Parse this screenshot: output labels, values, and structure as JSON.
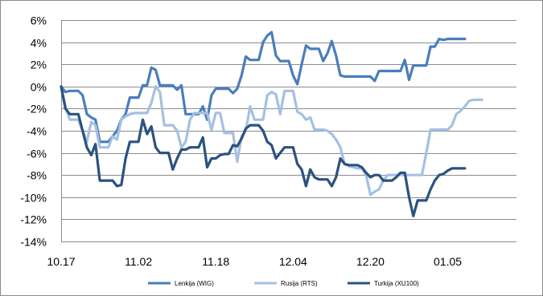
{
  "chart_data": {
    "type": "line",
    "title": "",
    "xlabel": "",
    "ylabel": "",
    "ylim": [
      -14,
      6
    ],
    "yticks": [
      6,
      4,
      2,
      0,
      -2,
      -4,
      -6,
      -8,
      -10,
      -12,
      -14
    ],
    "ytick_labels": [
      "6%",
      "4%",
      "2%",
      "0%",
      "-2%",
      "-4%",
      "-6%",
      "-8%",
      "-10%",
      "-12%",
      "-14%"
    ],
    "xticks": [
      0,
      18,
      36,
      54,
      72,
      90
    ],
    "xtick_labels": [
      "10.17",
      "11.02",
      "11.18",
      "12.04",
      "12.20",
      "01.05"
    ],
    "x_max": 106,
    "grid": "horizontal",
    "legend_position": "bottom",
    "series": [
      {
        "name": "Lenkija (WIG)",
        "color": "#4a7ebb",
        "values": [
          0.0,
          -0.5,
          -0.4,
          -0.4,
          -0.4,
          -0.8,
          -2.5,
          -2.8,
          -3.0,
          -5.0,
          -5.0,
          -5.0,
          -4.5,
          -4.0,
          -3.0,
          -2.5,
          -1.0,
          -1.0,
          -1.0,
          0.1,
          0.1,
          1.7,
          1.5,
          0.1,
          0.1,
          0.1,
          0.1,
          -0.3,
          0.1,
          -2.5,
          -2.5,
          -2.5,
          -2.5,
          -1.8,
          -3.0,
          -0.8,
          -0.2,
          -0.2,
          -0.2,
          -0.2,
          -0.6,
          -0.2,
          1.0,
          2.7,
          2.4,
          2.4,
          2.4,
          4.0,
          4.6,
          4.9,
          2.8,
          2.3,
          2.3,
          2.3,
          1.0,
          0.2,
          2.0,
          3.7,
          3.4,
          3.4,
          3.4,
          2.3,
          3.0,
          4.1,
          2.8,
          1.0,
          0.9,
          0.9,
          0.9,
          0.9,
          0.9,
          0.9,
          0.9,
          0.5,
          1.4,
          1.4,
          1.4,
          1.4,
          1.4,
          1.4,
          2.4,
          0.6,
          1.9,
          1.9,
          1.9,
          1.9,
          3.6,
          3.6,
          4.3,
          4.2,
          4.3,
          4.3,
          4.3,
          4.3,
          4.3
        ],
        "name_pos": 0
      },
      {
        "name": "Rusija (RTS)",
        "color": "#a5c0e2",
        "values": [
          0.0,
          -1.8,
          -3.0,
          -3.0,
          -3.0,
          -4.0,
          -5.0,
          -3.2,
          -3.5,
          -5.5,
          -5.5,
          -5.5,
          -4.5,
          -4.8,
          -3.0,
          -2.7,
          -2.5,
          -2.4,
          -2.4,
          -2.4,
          -2.4,
          -1.5,
          0.0,
          -0.5,
          -3.5,
          -3.5,
          -3.5,
          -4.0,
          -5.5,
          -5.0,
          -3.0,
          -2.4,
          -2.4,
          -2.4,
          -2.4,
          -3.9,
          -2.4,
          -2.4,
          -4.2,
          -4.2,
          -4.2,
          -6.8,
          -4.5,
          -4.0,
          -1.8,
          -3.0,
          -3.0,
          -3.0,
          -0.8,
          -0.5,
          -0.7,
          -2.5,
          -0.4,
          -0.4,
          -0.4,
          -2.3,
          -2.5,
          -3.0,
          -2.8,
          -3.9,
          -3.9,
          -3.9,
          -4.0,
          -4.3,
          -4.8,
          -5.5,
          -7.0,
          -7.2,
          -7.3,
          -7.4,
          -7.4,
          -8.0,
          -9.8,
          -9.5,
          -9.3,
          -8.5,
          -8.0,
          -8.0,
          -8.0,
          -8.0,
          -8.0,
          -8.0,
          -8.0,
          -8.0,
          -8.0,
          -6.0,
          -3.9,
          -3.9,
          -3.9,
          -3.9,
          -3.9,
          -3.5,
          -2.5,
          -2.2,
          -1.8,
          -1.3,
          -1.2,
          -1.2,
          -1.2
        ],
        "name_pos": 0
      },
      {
        "name": "Turkija (XU100)",
        "color": "#2b527f",
        "values": [
          0.0,
          -2.0,
          -2.5,
          -2.5,
          -2.5,
          -4.0,
          -5.5,
          -6.2,
          -5.2,
          -8.5,
          -8.5,
          -8.5,
          -8.5,
          -9.0,
          -8.9,
          -6.5,
          -5.0,
          -5.0,
          -5.0,
          -3.0,
          -4.3,
          -3.6,
          -5.5,
          -6.0,
          -6.0,
          -6.0,
          -7.5,
          -6.5,
          -5.7,
          -5.7,
          -5.5,
          -5.5,
          -5.5,
          -4.6,
          -7.3,
          -6.5,
          -6.5,
          -6.2,
          -6.1,
          -6.1,
          -5.3,
          -5.4,
          -4.7,
          -3.8,
          -3.5,
          -3.5,
          -3.5,
          -4.0,
          -5.0,
          -5.3,
          -6.5,
          -6.0,
          -5.5,
          -5.5,
          -5.5,
          -7.0,
          -7.5,
          -9.0,
          -7.5,
          -8.2,
          -8.4,
          -8.4,
          -8.4,
          -9.0,
          -8.2,
          -6.5,
          -7.0,
          -7.1,
          -7.1,
          -7.1,
          -7.3,
          -7.8,
          -8.2,
          -8.0,
          -8.0,
          -8.5,
          -8.5,
          -8.5,
          -8.2,
          -7.8,
          -7.8,
          -10.0,
          -11.7,
          -10.3,
          -10.3,
          -10.3,
          -9.3,
          -8.5,
          -8.0,
          -7.9,
          -7.6,
          -7.4,
          -7.4,
          -7.4,
          -7.4
        ],
        "name_pos": 0
      }
    ]
  }
}
